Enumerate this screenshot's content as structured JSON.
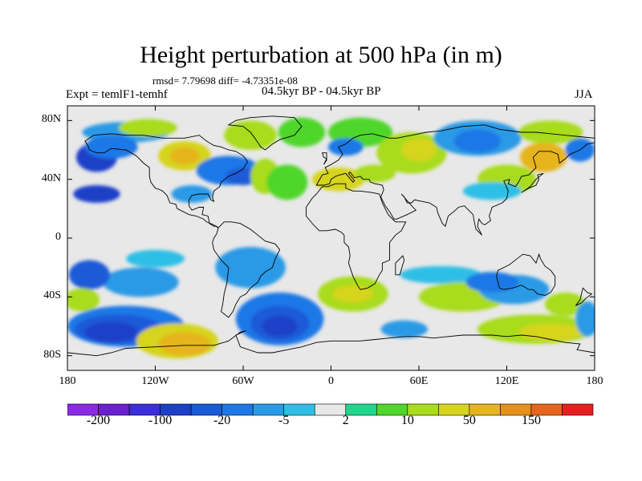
{
  "map": {
    "title": "Height perturbation at 500 hPa (in m)",
    "stats": "rmsd= 7.79698 diff= -4.73351e-08",
    "period": "04.5kyr BP - 04.5kyr BP",
    "experiment": "Expt = temlF1-temhf",
    "season": "JJA",
    "projection": "cylindrical-equidistant",
    "lon_range": [
      -180,
      180
    ],
    "lat_range": [
      -90,
      90
    ],
    "lat_ticks": [
      {
        "value": 80,
        "label": "80N"
      },
      {
        "value": 40,
        "label": "40N"
      },
      {
        "value": 0,
        "label": "0"
      },
      {
        "value": -40,
        "label": "40S"
      },
      {
        "value": -80,
        "label": "80S"
      }
    ],
    "lon_ticks": [
      {
        "value": -180,
        "label": "180"
      },
      {
        "value": -120,
        "label": "120W"
      },
      {
        "value": -60,
        "label": "60W"
      },
      {
        "value": 0,
        "label": "0"
      },
      {
        "value": 60,
        "label": "60E"
      },
      {
        "value": 120,
        "label": "120E"
      },
      {
        "value": 180,
        "label": "180"
      }
    ]
  },
  "colorbar": {
    "colors": [
      "#8a2be2",
      "#6a1fd0",
      "#3a2fd8",
      "#1e3fc8",
      "#1a5ad8",
      "#1f78e6",
      "#2a9ae6",
      "#2fbfe6",
      "#e8e8e8",
      "#1fd68c",
      "#4fd62a",
      "#a8dc1e",
      "#d6d41e",
      "#e6b41e",
      "#e6901e",
      "#e6641e",
      "#e61e1e"
    ],
    "labels": [
      {
        "text": "-200",
        "boundary": 1
      },
      {
        "text": "-100",
        "boundary": 3
      },
      {
        "text": "-20",
        "boundary": 5
      },
      {
        "text": "-5",
        "boundary": 7
      },
      {
        "text": "2",
        "boundary": 9
      },
      {
        "text": "10",
        "boundary": 11
      },
      {
        "text": "50",
        "boundary": 13
      },
      {
        "text": "150",
        "boundary": 15
      }
    ]
  },
  "fields": [
    {
      "lon": -160,
      "lat": 55,
      "rx": 14,
      "ry": 10,
      "v": 3
    },
    {
      "lon": -140,
      "lat": 72,
      "rx": 30,
      "ry": 7,
      "v": 6
    },
    {
      "lon": -160,
      "lat": 30,
      "rx": 16,
      "ry": 6,
      "v": 3
    },
    {
      "lon": -150,
      "lat": 62,
      "rx": 18,
      "ry": 8,
      "v": 5
    },
    {
      "lon": -125,
      "lat": 75,
      "rx": 20,
      "ry": 6,
      "v": 11
    },
    {
      "lon": -100,
      "lat": 56,
      "rx": 18,
      "ry": 10,
      "v": 12
    },
    {
      "lon": -100,
      "lat": 56,
      "rx": 10,
      "ry": 6,
      "v": 13
    },
    {
      "lon": -70,
      "lat": 46,
      "rx": 22,
      "ry": 10,
      "v": 5
    },
    {
      "lon": -60,
      "lat": 42,
      "rx": 12,
      "ry": 6,
      "v": 4
    },
    {
      "lon": -95,
      "lat": 30,
      "rx": 14,
      "ry": 6,
      "v": 6
    },
    {
      "lon": -45,
      "lat": 42,
      "rx": 10,
      "ry": 12,
      "v": 11
    },
    {
      "lon": -30,
      "lat": 38,
      "rx": 14,
      "ry": 12,
      "v": 10
    },
    {
      "lon": -55,
      "lat": 70,
      "rx": 18,
      "ry": 10,
      "v": 11
    },
    {
      "lon": -20,
      "lat": 72,
      "rx": 16,
      "ry": 10,
      "v": 10
    },
    {
      "lon": 20,
      "lat": 72,
      "rx": 22,
      "ry": 10,
      "v": 10
    },
    {
      "lon": 10,
      "lat": 62,
      "rx": 12,
      "ry": 6,
      "v": 5
    },
    {
      "lon": 5,
      "lat": 40,
      "rx": 18,
      "ry": 8,
      "v": 12
    },
    {
      "lon": 30,
      "lat": 44,
      "rx": 14,
      "ry": 6,
      "v": 11
    },
    {
      "lon": 55,
      "lat": 58,
      "rx": 24,
      "ry": 14,
      "v": 11
    },
    {
      "lon": 60,
      "lat": 60,
      "rx": 12,
      "ry": 8,
      "v": 12
    },
    {
      "lon": 100,
      "lat": 68,
      "rx": 30,
      "ry": 12,
      "v": 6
    },
    {
      "lon": 100,
      "lat": 66,
      "rx": 16,
      "ry": 8,
      "v": 5
    },
    {
      "lon": 120,
      "lat": 40,
      "rx": 20,
      "ry": 10,
      "v": 11
    },
    {
      "lon": 150,
      "lat": 72,
      "rx": 22,
      "ry": 8,
      "v": 11
    },
    {
      "lon": 145,
      "lat": 55,
      "rx": 16,
      "ry": 10,
      "v": 13
    },
    {
      "lon": 170,
      "lat": 60,
      "rx": 10,
      "ry": 8,
      "v": 5
    },
    {
      "lon": 110,
      "lat": 32,
      "rx": 20,
      "ry": 6,
      "v": 7
    },
    {
      "lon": -120,
      "lat": -14,
      "rx": 20,
      "ry": 6,
      "v": 7
    },
    {
      "lon": -130,
      "lat": -30,
      "rx": 26,
      "ry": 10,
      "v": 6
    },
    {
      "lon": -165,
      "lat": -25,
      "rx": 14,
      "ry": 10,
      "v": 4
    },
    {
      "lon": -170,
      "lat": -42,
      "rx": 12,
      "ry": 8,
      "v": 11
    },
    {
      "lon": -140,
      "lat": -60,
      "rx": 40,
      "ry": 14,
      "v": 5
    },
    {
      "lon": -145,
      "lat": -62,
      "rx": 30,
      "ry": 10,
      "v": 4
    },
    {
      "lon": -150,
      "lat": -64,
      "rx": 18,
      "ry": 7,
      "v": 3
    },
    {
      "lon": -105,
      "lat": -70,
      "rx": 28,
      "ry": 12,
      "v": 12
    },
    {
      "lon": -100,
      "lat": -72,
      "rx": 18,
      "ry": 8,
      "v": 13
    },
    {
      "lon": -55,
      "lat": -20,
      "rx": 24,
      "ry": 14,
      "v": 6
    },
    {
      "lon": -35,
      "lat": -55,
      "rx": 30,
      "ry": 18,
      "v": 5
    },
    {
      "lon": -35,
      "lat": -58,
      "rx": 20,
      "ry": 12,
      "v": 4
    },
    {
      "lon": -35,
      "lat": -60,
      "rx": 12,
      "ry": 7,
      "v": 3
    },
    {
      "lon": 15,
      "lat": -38,
      "rx": 24,
      "ry": 12,
      "v": 11
    },
    {
      "lon": 15,
      "lat": -38,
      "rx": 14,
      "ry": 6,
      "v": 12
    },
    {
      "lon": 50,
      "lat": -62,
      "rx": 16,
      "ry": 6,
      "v": 6
    },
    {
      "lon": 75,
      "lat": -25,
      "rx": 28,
      "ry": 6,
      "v": 7
    },
    {
      "lon": 90,
      "lat": -40,
      "rx": 30,
      "ry": 10,
      "v": 11
    },
    {
      "lon": 125,
      "lat": -35,
      "rx": 24,
      "ry": 10,
      "v": 6
    },
    {
      "lon": 110,
      "lat": -30,
      "rx": 18,
      "ry": 7,
      "v": 5
    },
    {
      "lon": 140,
      "lat": -62,
      "rx": 40,
      "ry": 10,
      "v": 11
    },
    {
      "lon": 150,
      "lat": -64,
      "rx": 22,
      "ry": 6,
      "v": 12
    },
    {
      "lon": 160,
      "lat": -45,
      "rx": 14,
      "ry": 8,
      "v": 11
    },
    {
      "lon": 175,
      "lat": -55,
      "rx": 8,
      "ry": 12,
      "v": 6
    },
    {
      "lon": 60,
      "lat": 10,
      "rx": 40,
      "ry": 6,
      "v": 8
    }
  ],
  "coastlines": [
    "M -168 66 L -162 70 L -150 71 L -140 70 L -128 70 L -115 68 L -100 68 L -90 70 L -85 66 L -80 63 L -75 62 L -70 60 L -65 59 L -60 56 L -57 52 L -60 47 L -65 44 L -70 42 L -75 38 L -76 35 L -80 32 L -81 28 L -80 25 L -82 26 L -84 30 L -90 30 L -95 29 L -97 26 L -97 22 L -95 19 L -90 21 L -87 21 L -88 16 L -84 15 L -83 10 L -80 8 L -78 8 L -77 7 L -80 9 L -85 11 L -87 13 L -92 15 L -97 16 L -105 20 L -106 23 L -110 24 L -112 29 L -115 32 L -117 33 L -120 34 L -123 38 L -124 42 L -124 48 L -128 51 L -133 56 L -140 60 L -150 61 L -155 58 L -160 58 L -165 60 L -166 63 L -168 66 Z",
    "M -77 7 L -73 11 L -68 11 L -62 10 L -55 6 L -50 2 L -45 -2 L -38 -4 L -35 -8 L -38 -14 L -40 -20 L -45 -23 L -48 -26 L -50 -30 L -55 -34 L -58 -38 L -62 -40 L -65 -45 L -67 -50 L -70 -54 L -75 -50 L -74 -45 L -73 -38 L -71 -30 L -70 -20 L -75 -15 L -80 -8 L -81 -3 L -80 0 L -78 3 L -77 7 Z",
    "M -45 60 L -40 64 L -35 67 L -25 70 L -20 76 L -25 82 L -40 83 L -55 82 L -65 80 L -70 77 L -60 76 L -55 72 L -52 68 L -48 62 L -45 60 Z",
    "M -10 36 L -6 43 L -2 44 L -4 48 L 0 50 L 5 53 L 8 57 L 5 62 L 10 64 L 15 68 L 20 70 L 28 71 L 40 68 L 45 68 L 55 70 L 65 72 L 75 73 L 90 76 L 105 77 L 115 74 L 130 72 L 140 72 L 150 71 L 160 70 L 170 69 L 180 68 L 180 65 L 175 64 L 170 60 L 163 57 L 160 54 L 156 51 L 155 57 L 150 59 L 142 59 L 138 55 L 140 48 L 135 43 L 130 42 L 128 38 L 126 35 L 121 37 L 122 40 L 118 39 L 121 32 L 120 27 L 117 24 L 110 21 L 108 15 L 109 12 L 105 9 L 103 10 L 101 13 L 100 8 L 103 2 L 99 6 L 98 10 L 97 16 L 94 19 L 91 22 L 87 21 L 85 19 L 80 15 L 78 8 L 76 10 L 73 17 L 72 21 L 67 24 L 62 25 L 57 26 L 55 24 L 52 24 L 50 28 L 48 30 L 55 22 L 58 19 L 52 16 L 45 13 L 43 13 L 40 18 L 37 22 L 34 28 L 36 33 L 35 36 L 30 37 L 27 38 L 26 40 L 22 40 L 20 42 L 16 41 L 13 45 L 12 44 L 16 39 L 15 38 L 10 44 L 6 43 L 3 42 L 0 40 L -1 37 L -5 36 L -10 36 Z",
    "M -17 21 L -17 15 L -12 9 L -8 5 L -3 5 L 3 6 L 7 4 L 9 2 L 9 -3 L 12 -6 L 13 -12 L 12 -17 L 15 -26 L 18 -32 L 20 -35 L 25 -34 L 30 -31 L 33 -25 L 35 -22 L 35 -17 L 40 -15 L 40 -10 L 40 -3 L 44 2 L 48 5 L 51 11 L 44 11 L 43 12 L 39 16 L 37 20 L 35 24 L 33 30 L 28 31 L 20 32 L 15 32 L 10 34 L 10 37 L 3 37 L -2 35 L -6 35 L -10 30 L -13 27 L -17 21 Z",
    "M 114 -22 L 113 -26 L 115 -34 L 118 -35 L 124 -34 L 130 -32 L 135 -35 L 138 -35 L 141 -38 L 146 -39 L 150 -37 L 153 -32 L 153 -26 L 150 -22 L 146 -19 L 143 -14 L 142 -11 L 140 -17 L 136 -12 L 131 -11 L 127 -14 L 122 -18 L 114 -22 Z",
    "M 44 -25 L 47 -25 L 49 -18 L 50 -15 L 49 -12 L 47 -14 L 44 -17 L 44 -25 Z",
    "M -5 50 L -3 53 L -3 58 L -6 58 L -5 55 L -3 54 L -5 50 Z",
    "M 130 31 L 135 34 L 140 36 L 142 40 L 141 43 L 145 44 L 140 40 L 136 35 L 130 31 Z",
    "M 172 -34 L 175 -37 L 178 -38 L 174 -41 L 171 -44 L 167 -46 L 170 -42 L 172 -34 Z",
    "M -180 -78 L -160 -80 L -150 -78 L -140 -75 L -120 -74 L -100 -73 L -80 -73 L -70 -70 L -62 -64 L -58 -63 L -65 -66 L -62 -74 L -50 -78 L -40 -78 L -30 -76 L -20 -74 L -10 -71 L 0 -70 L 10 -70 L 20 -70 L 30 -69 L 40 -68 L 50 -67 L 60 -67 L 70 -68 L 80 -67 L 90 -66 L 100 -66 L 110 -66 L 120 -67 L 130 -66 L 140 -67 L 150 -69 L 160 -71 L 170 -72 L 168 -76 L 180 -78"
  ]
}
